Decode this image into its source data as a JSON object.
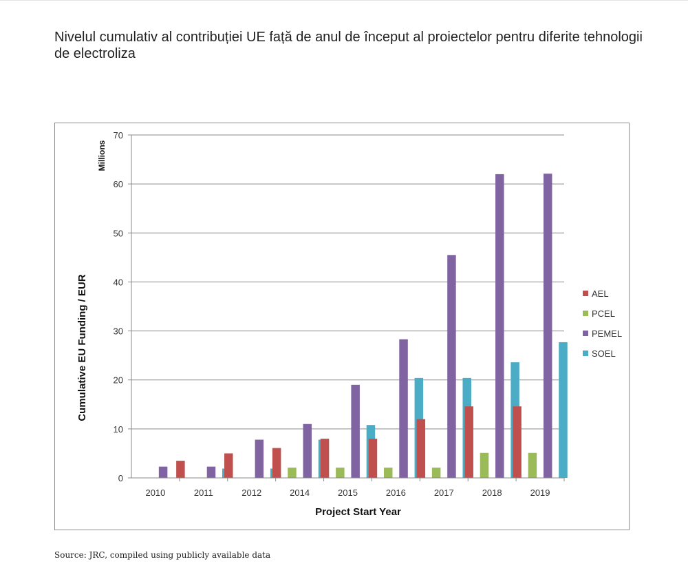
{
  "title": "Nivelul cumulativ al contribuției UE față de anul de început al proiectelor pentru diferite tehnologii de electroliza",
  "source": "Source: JRC, compiled using publicly available data",
  "chart_data": {
    "type": "bar",
    "categories": [
      "2010",
      "2011",
      "2012",
      "2014",
      "2015",
      "2016",
      "2017",
      "2018",
      "2019"
    ],
    "series": [
      {
        "name": "AEL",
        "color": "#c0504d",
        "values": [
          0,
          3.5,
          5.0,
          6.1,
          8.0,
          8.0,
          12.0,
          14.6,
          14.6
        ]
      },
      {
        "name": "PCEL",
        "color": "#9bbb59",
        "values": [
          0,
          0,
          0,
          2.1,
          2.1,
          2.1,
          2.1,
          5.1,
          5.1
        ]
      },
      {
        "name": "PEMEL",
        "color": "#8064a2",
        "values": [
          2.3,
          2.3,
          7.8,
          11.0,
          19.0,
          28.3,
          45.5,
          62.0,
          62.1
        ]
      },
      {
        "name": "SOEL",
        "color": "#4bacc6",
        "values": [
          0,
          1.9,
          1.9,
          7.8,
          10.8,
          20.4,
          20.4,
          23.6,
          27.7
        ]
      }
    ],
    "xlabel": "Project Start Year",
    "ylabel": "Cumulative EU Funding / EUR",
    "yunit_label": "Millions",
    "ylim": [
      0,
      70
    ],
    "yticks": [
      0,
      10,
      20,
      30,
      40,
      50,
      60,
      70
    ],
    "grid": true,
    "legend": "right"
  }
}
